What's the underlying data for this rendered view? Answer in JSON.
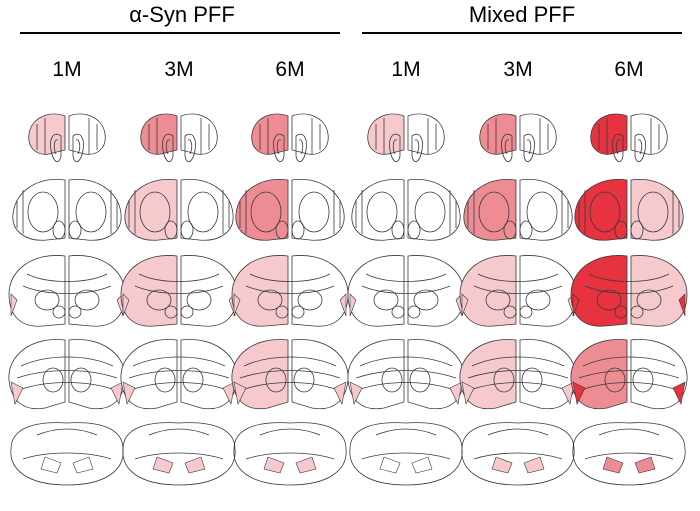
{
  "groups": [
    {
      "name": "α-Syn PFF",
      "timepoints": [
        "1M",
        "3M",
        "6M"
      ]
    },
    {
      "name": "Mixed PFF",
      "timepoints": [
        "1M",
        "3M",
        "6M"
      ]
    }
  ],
  "colors": {
    "outline": "#3a3a3a",
    "light": "#f6c9cd",
    "medium": "#ee8c94",
    "strong": "#e7323f",
    "max": "#e60012"
  },
  "intensity": [
    [
      [
        1,
        0,
        0,
        0,
        0
      ],
      [
        2,
        1,
        1,
        0,
        1
      ],
      [
        2,
        2,
        1,
        1,
        1
      ]
    ],
    [
      [
        1,
        0,
        0,
        0,
        0
      ],
      [
        2,
        2,
        1,
        1,
        1
      ],
      [
        3,
        3,
        3,
        2,
        2
      ]
    ]
  ]
}
